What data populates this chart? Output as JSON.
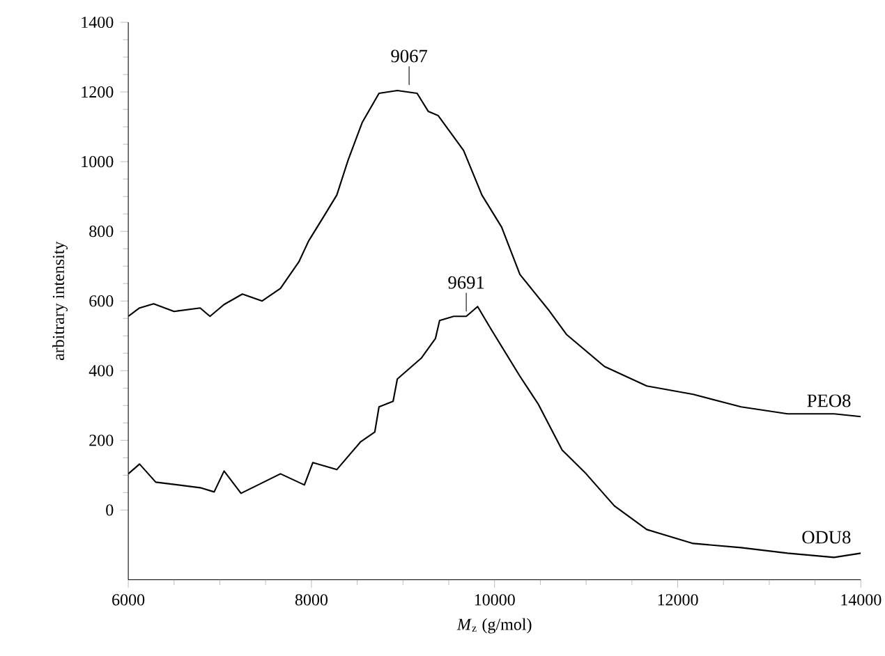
{
  "chart_data": {
    "type": "line",
    "xlabel": "*M*$_{z}$ (g/mol)",
    "ylabel": "arbitrary intensity",
    "xlim": [
      6000,
      14000
    ],
    "xticks": [
      6000,
      8000,
      10000,
      12000,
      14000
    ],
    "ylim": [
      -200,
      1400
    ],
    "yticks": [
      0,
      200,
      400,
      600,
      800,
      1000,
      1200,
      1400
    ],
    "legend": false,
    "grid": false,
    "marker": "none",
    "line_style": "solid",
    "x": [
      6000,
      6123,
      6277,
      6500,
      6785,
      6892,
      7046,
      7246,
      7462,
      7662,
      7862,
      7969,
      8138,
      8277,
      8400,
      8554,
      8738,
      8938,
      9154,
      9277,
      9385,
      9662,
      9862,
      10077,
      10277,
      10585,
      10785,
      11200,
      11662,
      12169,
      12692,
      13200,
      13708,
      14000
    ],
    "series": [
      {
        "name": "PEO8",
        "color": "#000000",
        "values": [
          556,
          580,
          592,
          570,
          580,
          556,
          590,
          620,
          600,
          636,
          712,
          772,
          844,
          904,
          1004,
          1112,
          1196,
          1204,
          1196,
          1144,
          1132,
          1032,
          904,
          812,
          676,
          576,
          504,
          412,
          356,
          332,
          296,
          276,
          276,
          268
        ]
      },
      {
        "name": "ODU8",
        "color": "#000000",
        "x": [
          6000,
          6123,
          6300,
          6785,
          6938,
          7046,
          7231,
          7662,
          7923,
          8015,
          8277,
          8538,
          8692,
          8738,
          8892,
          8938,
          9200,
          9354,
          9400,
          9554,
          9691,
          9815,
          9969,
          10277,
          10477,
          10738,
          11000,
          11308,
          11662,
          12169,
          12692,
          13200,
          13708,
          14000
        ],
        "values": [
          104,
          132,
          80,
          64,
          52,
          112,
          48,
          104,
          72,
          136,
          116,
          196,
          224,
          296,
          312,
          376,
          436,
          492,
          544,
          556,
          556,
          584,
          516,
          384,
          304,
          172,
          104,
          12,
          -56,
          -96,
          -108,
          -124,
          -136,
          -124
        ]
      }
    ],
    "annotations": [
      {
        "text": "9067",
        "x": 9067,
        "y": 1220
      },
      {
        "text": "9691",
        "x": 9691,
        "y": 570
      }
    ]
  }
}
